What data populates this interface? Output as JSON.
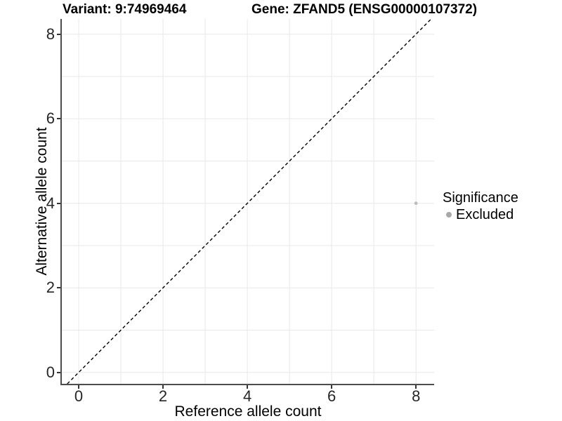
{
  "chart_data": {
    "type": "scatter",
    "title_left": "Variant: 9:74969464",
    "title_right": "Gene: ZFAND5 (ENSG00000107372)",
    "xlabel": "Reference allele count",
    "ylabel": "Alternative allele count",
    "xlim": [
      -0.4,
      8.43
    ],
    "ylim": [
      -0.27,
      8.36
    ],
    "xticks": [
      0,
      2,
      4,
      6,
      8
    ],
    "yticks": [
      0,
      2,
      4,
      6,
      8
    ],
    "grid_values": [
      0,
      1,
      2,
      3,
      4,
      5,
      6,
      7,
      8
    ],
    "grid": true,
    "points": [
      {
        "x": 8,
        "y": 4,
        "series": "Excluded"
      }
    ],
    "reference_line": {
      "type": "abline",
      "slope": 1,
      "intercept": 0,
      "style": "dashed",
      "color": "#000000"
    },
    "legend": {
      "title": "Significance",
      "position": "right",
      "entries": [
        {
          "label": "Excluded",
          "color": "#a8a8a8",
          "marker": "circle"
        }
      ]
    },
    "colors": {
      "point": "#bdbdbd",
      "grid": "#e8e8e8",
      "axis": "#4d4d4d",
      "tick": "#333333",
      "tick_label": "#262626",
      "background": "#ffffff"
    }
  }
}
